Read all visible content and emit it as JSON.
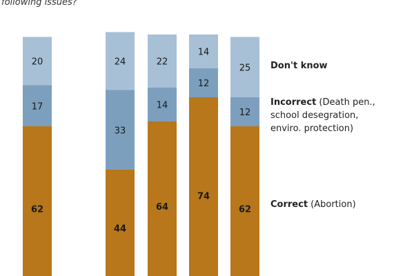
{
  "subtitle": "following issues?",
  "colors": {
    "dont_know": "#a8c0d6",
    "incorrect": "#7c9fbe",
    "correct": "#b8771a"
  },
  "legend": {
    "dont_know": {
      "bold": "Don't know",
      "detail": ""
    },
    "incorrect": {
      "bold": "Incorrect",
      "detail_line1": " (Death pen.,",
      "detail_line2": "school desegration,",
      "detail_line3": "enviro. protection)"
    },
    "correct": {
      "bold": "Correct",
      "detail": " (Abortion)"
    }
  },
  "chart_data": {
    "type": "bar",
    "stacked": true,
    "categories": [
      "",
      "",
      "",
      "",
      ""
    ],
    "series": [
      {
        "name": "Correct (Abortion)",
        "values": [
          62,
          44,
          64,
          74,
          62
        ]
      },
      {
        "name": "Incorrect (Death pen., school desegration, enviro. protection)",
        "values": [
          17,
          33,
          14,
          12,
          12
        ]
      },
      {
        "name": "Don't know",
        "values": [
          20,
          24,
          22,
          14,
          25
        ]
      }
    ],
    "ylim": [
      0,
      100
    ],
    "grid": false,
    "legend": "right"
  }
}
